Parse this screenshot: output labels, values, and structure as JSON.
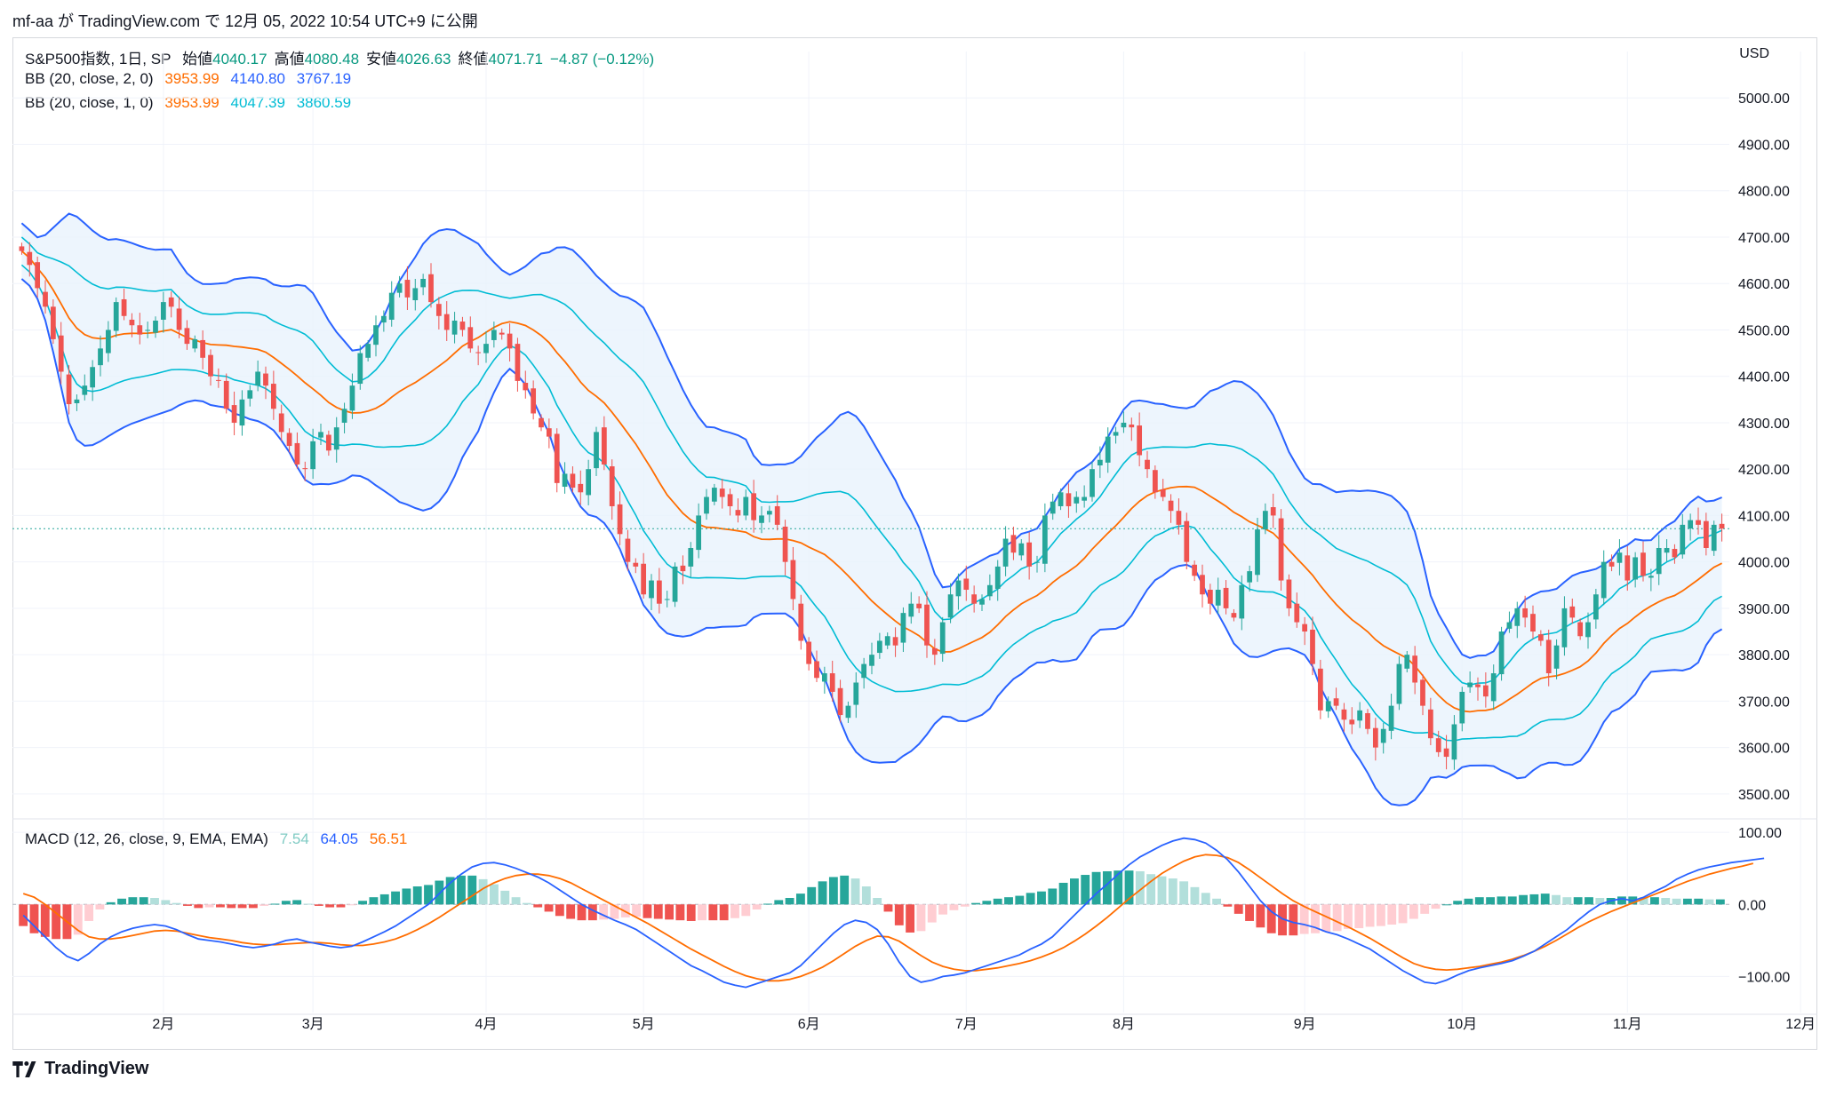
{
  "header": {
    "text": "mf-aa が TradingView.com で 12月 05, 2022 10:54 UTC+9 に公開"
  },
  "legend": {
    "symbol": "S&P500指数, 1日, SP",
    "open_label": "始値",
    "open": "4040.17",
    "high_label": "高値",
    "high": "4080.48",
    "low_label": "安値",
    "low": "4026.63",
    "close_label": "終値",
    "close": "4071.71",
    "change": "−4.87 (−0.12%)",
    "bb2_label": "BB (20, close, 2, 0)",
    "bb2_basis": "3953.99",
    "bb2_upper": "4140.80",
    "bb2_lower": "3767.19",
    "bb1_label": "BB (20, close, 1, 0)",
    "bb1_basis": "3953.99",
    "bb1_upper": "4047.39",
    "bb1_lower": "3860.59",
    "macd_label": "MACD (12, 26, close, 9, EMA, EMA)",
    "macd_hist": "7.54",
    "macd_line": "64.05",
    "macd_signal": "56.51"
  },
  "unit": "USD",
  "footer": {
    "brand": "TradingView"
  },
  "colors": {
    "up": "#26a69a",
    "down": "#ef5350",
    "basis": "#ff6d00",
    "bb2": "#2962ff",
    "bb1": "#00bcd4",
    "band_fill": "#e8f2fc",
    "macd_line": "#2962ff",
    "signal_line": "#ff6d00",
    "hist_up_strong": "#26a69a",
    "hist_up_weak": "#b2dfdb",
    "hist_dn_strong": "#ef5350",
    "hist_dn_weak": "#ffcdd2"
  },
  "chart_data": [
    {
      "type": "candlestick",
      "title": "S&P500指数, 1日, SP",
      "ylabel": "USD",
      "ylim": [
        3450,
        5100
      ],
      "y_ticks": [
        3500,
        3600,
        3700,
        3800,
        3900,
        4000,
        4100,
        4200,
        4300,
        4400,
        4500,
        4600,
        4700,
        4800,
        4900,
        5000
      ],
      "y_tick_labels": [
        "3500.00",
        "3600.00",
        "3700.00",
        "3800.00",
        "3900.00",
        "4000.00",
        "4100.00",
        "4200.00",
        "4300.00",
        "4400.00",
        "4500.00",
        "4600.00",
        "4700.00",
        "4800.00",
        "4900.00",
        "5000.00"
      ],
      "x_labels": [
        "2月",
        "3月",
        "4月",
        "5月",
        "6月",
        "7月",
        "8月",
        "9月",
        "10月",
        "11月",
        "12月"
      ],
      "x_label_index": [
        18,
        37,
        59,
        79,
        100,
        120,
        140,
        163,
        183,
        204,
        226
      ],
      "last_price": 4071.71,
      "closes": [
        4670,
        4640,
        4590,
        4550,
        4480,
        4410,
        4340,
        4350,
        4380,
        4420,
        4460,
        4500,
        4560,
        4530,
        4510,
        4490,
        4500,
        4520,
        4560,
        4550,
        4500,
        4470,
        4480,
        4440,
        4400,
        4390,
        4330,
        4300,
        4350,
        4370,
        4410,
        4380,
        4330,
        4280,
        4250,
        4210,
        4200,
        4260,
        4280,
        4240,
        4290,
        4330,
        4380,
        4450,
        4470,
        4510,
        4530,
        4580,
        4600,
        4570,
        4590,
        4610,
        4560,
        4530,
        4500,
        4520,
        4500,
        4460,
        4450,
        4470,
        4500,
        4490,
        4460,
        4390,
        4370,
        4320,
        4290,
        4270,
        4170,
        4190,
        4160,
        4150,
        4200,
        4280,
        4210,
        4120,
        4060,
        4000,
        3990,
        3930,
        3960,
        3910,
        3920,
        3990,
        3980,
        4030,
        4100,
        4140,
        4160,
        4140,
        4120,
        4100,
        4140,
        4090,
        4100,
        4110,
        4080,
        4000,
        3920,
        3830,
        3780,
        3750,
        3760,
        3720,
        3670,
        3690,
        3740,
        3780,
        3800,
        3830,
        3840,
        3820,
        3890,
        3910,
        3900,
        3820,
        3800,
        3870,
        3930,
        3960,
        3940,
        3910,
        3920,
        3950,
        3990,
        4050,
        4020,
        4040,
        3990,
        4000,
        4100,
        4130,
        4150,
        4120,
        4140,
        4140,
        4200,
        4220,
        4270,
        4280,
        4300,
        4290,
        4230,
        4200,
        4150,
        4140,
        4110,
        4080,
        4000,
        3970,
        3930,
        3910,
        3940,
        3900,
        3880,
        3950,
        3980,
        4070,
        4110,
        4100,
        3960,
        3900,
        3870,
        3850,
        3780,
        3680,
        3700,
        3690,
        3660,
        3650,
        3680,
        3640,
        3600,
        3640,
        3690,
        3780,
        3800,
        3740,
        3690,
        3620,
        3590,
        3580,
        3650,
        3720,
        3740,
        3730,
        3710,
        3760,
        3850,
        3870,
        3900,
        3880,
        3850,
        3830,
        3760,
        3820,
        3900,
        3880,
        3840,
        3870,
        3930,
        4000,
        3990,
        4020,
        3960,
        4010,
        3970,
        3970,
        4030,
        4030,
        4010,
        4080,
        4090,
        4080,
        4030,
        4080,
        4072
      ]
    },
    {
      "type": "line",
      "title": "MACD (12, 26, close, 9, EMA, EMA)",
      "ylim": [
        -150,
        115
      ],
      "y_ticks": [
        -100,
        0,
        100
      ],
      "y_tick_labels": [
        "−100.00",
        "0.00",
        "100.00"
      ],
      "series": [
        {
          "name": "MACD",
          "values": [
            -15,
            -30,
            -45,
            -60,
            -72,
            -78,
            -68,
            -55,
            -45,
            -38,
            -33,
            -30,
            -28,
            -30,
            -35,
            -42,
            -48,
            -50,
            -52,
            -55,
            -58,
            -60,
            -58,
            -55,
            -50,
            -48,
            -52,
            -55,
            -58,
            -60,
            -58,
            -52,
            -45,
            -38,
            -30,
            -20,
            -10,
            0,
            15,
            30,
            42,
            52,
            57,
            58,
            55,
            50,
            44,
            38,
            30,
            20,
            10,
            0,
            -8,
            -15,
            -22,
            -28,
            -35,
            -45,
            -55,
            -65,
            -75,
            -85,
            -92,
            -100,
            -108,
            -112,
            -115,
            -110,
            -105,
            -100,
            -95,
            -85,
            -70,
            -55,
            -40,
            -28,
            -22,
            -25,
            -35,
            -55,
            -80,
            -100,
            -108,
            -105,
            -100,
            -98,
            -95,
            -90,
            -85,
            -80,
            -75,
            -70,
            -62,
            -55,
            -45,
            -30,
            -15,
            0,
            15,
            28,
            42,
            55,
            66,
            74,
            82,
            88,
            92,
            90,
            85,
            75,
            62,
            45,
            25,
            5,
            -10,
            -20,
            -25,
            -28,
            -32,
            -38,
            -42,
            -48,
            -55,
            -62,
            -72,
            -82,
            -92,
            -100,
            -108,
            -110,
            -105,
            -98,
            -92,
            -88,
            -85,
            -82,
            -78,
            -72,
            -65,
            -55,
            -45,
            -35,
            -22,
            -10,
            0,
            5,
            8,
            5,
            10,
            18,
            25,
            35,
            42,
            48,
            52,
            55,
            58,
            60,
            62,
            64
          ]
        },
        {
          "name": "Signal",
          "values": [
            15,
            10,
            0,
            -12,
            -24,
            -36,
            -45,
            -48,
            -48,
            -46,
            -43,
            -40,
            -37,
            -36,
            -37,
            -40,
            -43,
            -46,
            -48,
            -50,
            -53,
            -55,
            -56,
            -56,
            -55,
            -54,
            -53,
            -53,
            -54,
            -56,
            -57,
            -57,
            -55,
            -52,
            -48,
            -42,
            -35,
            -27,
            -18,
            -8,
            2,
            12,
            22,
            30,
            36,
            40,
            42,
            42,
            40,
            36,
            30,
            22,
            14,
            6,
            -2,
            -10,
            -18,
            -26,
            -35,
            -44,
            -53,
            -62,
            -70,
            -78,
            -86,
            -93,
            -99,
            -103,
            -106,
            -106,
            -104,
            -100,
            -94,
            -87,
            -78,
            -68,
            -58,
            -50,
            -44,
            -45,
            -51,
            -61,
            -71,
            -80,
            -86,
            -90,
            -92,
            -92,
            -90,
            -88,
            -85,
            -82,
            -78,
            -73,
            -67,
            -60,
            -51,
            -41,
            -30,
            -18,
            -5,
            8,
            20,
            32,
            43,
            52,
            60,
            66,
            69,
            68,
            65,
            58,
            48,
            37,
            26,
            15,
            5,
            -3,
            -10,
            -17,
            -24,
            -31,
            -39,
            -47,
            -56,
            -65,
            -74,
            -82,
            -87,
            -90,
            -91,
            -90,
            -88,
            -86,
            -83,
            -80,
            -76,
            -71,
            -65,
            -58,
            -50,
            -41,
            -32,
            -24,
            -17,
            -10,
            -4,
            2,
            8,
            14,
            20,
            26,
            32,
            37,
            42,
            46,
            50,
            53,
            57
          ]
        },
        {
          "name": "Histogram",
          "values": [
            -30,
            -40,
            -45,
            -48,
            -48,
            -42,
            -23,
            -7,
            3,
            8,
            10,
            10,
            9,
            6,
            2,
            -2,
            -5,
            -4,
            -4,
            -5,
            -5,
            -5,
            -2,
            1,
            5,
            6,
            1,
            -2,
            -4,
            -4,
            -1,
            5,
            10,
            14,
            18,
            22,
            25,
            27,
            33,
            38,
            40,
            40,
            35,
            28,
            19,
            10,
            2,
            -4,
            -10,
            -16,
            -20,
            -22,
            -22,
            -21,
            -20,
            -18,
            -17,
            -19,
            -20,
            -21,
            -22,
            -23,
            -22,
            -22,
            -22,
            -19,
            -16,
            -7,
            1,
            6,
            9,
            15,
            24,
            32,
            38,
            40,
            36,
            25,
            9,
            -10,
            -29,
            -39,
            -37,
            -25,
            -14,
            -8,
            -3,
            2,
            5,
            8,
            10,
            12,
            16,
            18,
            22,
            30,
            36,
            41,
            45,
            46,
            47,
            47,
            46,
            42,
            39,
            36,
            32,
            24,
            16,
            8,
            -3,
            -13,
            -23,
            -32,
            -40,
            -43,
            -43,
            -41,
            -40,
            -38,
            -37,
            -34,
            -33,
            -31,
            -30,
            -28,
            -26,
            -20,
            -13,
            -6,
            0,
            5,
            8,
            10,
            10,
            11,
            11,
            13,
            14,
            15,
            13,
            10,
            10,
            10,
            9,
            9,
            11,
            11,
            10,
            10,
            9,
            8,
            8,
            8,
            7,
            7
          ]
        }
      ]
    }
  ]
}
